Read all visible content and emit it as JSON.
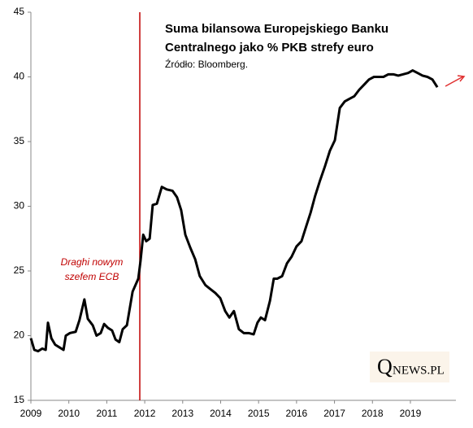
{
  "chart_data": {
    "type": "line",
    "title_lines": [
      "Suma bilansowa Europejskiego Banku",
      "Centralnego jako % PKB strefy euro"
    ],
    "subtitle": "Źródło: Bloomberg.",
    "annotation_lines": [
      "Draghi nowym",
      "szefem ECB"
    ],
    "vline": 2011.87,
    "vline_color": "#c00000",
    "logo": [
      "Q",
      "NEWS.PL"
    ],
    "xlim": [
      2009,
      2020.2
    ],
    "xticks": [
      2009,
      2010,
      2011,
      2012,
      2013,
      2014,
      2015,
      2016,
      2017,
      2018,
      2019
    ],
    "ylim": [
      15,
      45
    ],
    "yticks": [
      15,
      20,
      25,
      30,
      35,
      40,
      45
    ],
    "grid": false,
    "series": [
      {
        "color": "#000000",
        "x": [
          2009.0,
          2009.09,
          2009.19,
          2009.3,
          2009.39,
          2009.45,
          2009.54,
          2009.64,
          2009.75,
          2009.86,
          2009.92,
          2010.03,
          2010.18,
          2010.28,
          2010.41,
          2010.5,
          2010.63,
          2010.73,
          2010.84,
          2010.93,
          2011.03,
          2011.14,
          2011.23,
          2011.33,
          2011.42,
          2011.53,
          2011.68,
          2011.83,
          2011.89,
          2011.96,
          2012.04,
          2012.13,
          2012.21,
          2012.32,
          2012.45,
          2012.58,
          2012.73,
          2012.85,
          2012.96,
          2013.07,
          2013.2,
          2013.33,
          2013.45,
          2013.6,
          2013.73,
          2013.86,
          2013.99,
          2014.12,
          2014.23,
          2014.35,
          2014.48,
          2014.61,
          2014.74,
          2014.87,
          2014.97,
          2015.06,
          2015.17,
          2015.3,
          2015.4,
          2015.49,
          2015.62,
          2015.75,
          2015.87,
          2016.0,
          2016.13,
          2016.26,
          2016.37,
          2016.49,
          2016.62,
          2016.75,
          2016.88,
          2017.01,
          2017.14,
          2017.27,
          2017.39,
          2017.52,
          2017.65,
          2017.78,
          2017.91,
          2018.04,
          2018.16,
          2018.29,
          2018.42,
          2018.55,
          2018.68,
          2018.81,
          2018.94,
          2019.06,
          2019.19,
          2019.32,
          2019.45,
          2019.58,
          2019.71
        ],
        "values": [
          19.8,
          18.9,
          18.8,
          19.0,
          18.9,
          21.0,
          19.8,
          19.3,
          19.1,
          18.9,
          20.0,
          20.2,
          20.3,
          21.2,
          22.8,
          21.3,
          20.8,
          20.0,
          20.2,
          20.9,
          20.6,
          20.4,
          19.7,
          19.5,
          20.5,
          20.8,
          23.4,
          24.4,
          25.8,
          27.8,
          27.3,
          27.5,
          30.1,
          30.2,
          31.5,
          31.3,
          31.2,
          30.7,
          29.7,
          27.8,
          26.8,
          25.9,
          24.6,
          23.9,
          23.6,
          23.3,
          22.9,
          21.9,
          21.4,
          21.9,
          20.5,
          20.2,
          20.2,
          20.1,
          21.0,
          21.4,
          21.2,
          22.7,
          24.4,
          24.4,
          24.6,
          25.6,
          26.1,
          26.9,
          27.3,
          28.5,
          29.5,
          30.8,
          32.0,
          33.1,
          34.3,
          35.1,
          37.6,
          38.1,
          38.3,
          38.5,
          39.0,
          39.4,
          39.8,
          40.0,
          40.0,
          40.0,
          40.2,
          40.2,
          40.1,
          40.2,
          40.3,
          40.5,
          40.3,
          40.1,
          40.0,
          39.8,
          39.2
        ]
      }
    ]
  }
}
